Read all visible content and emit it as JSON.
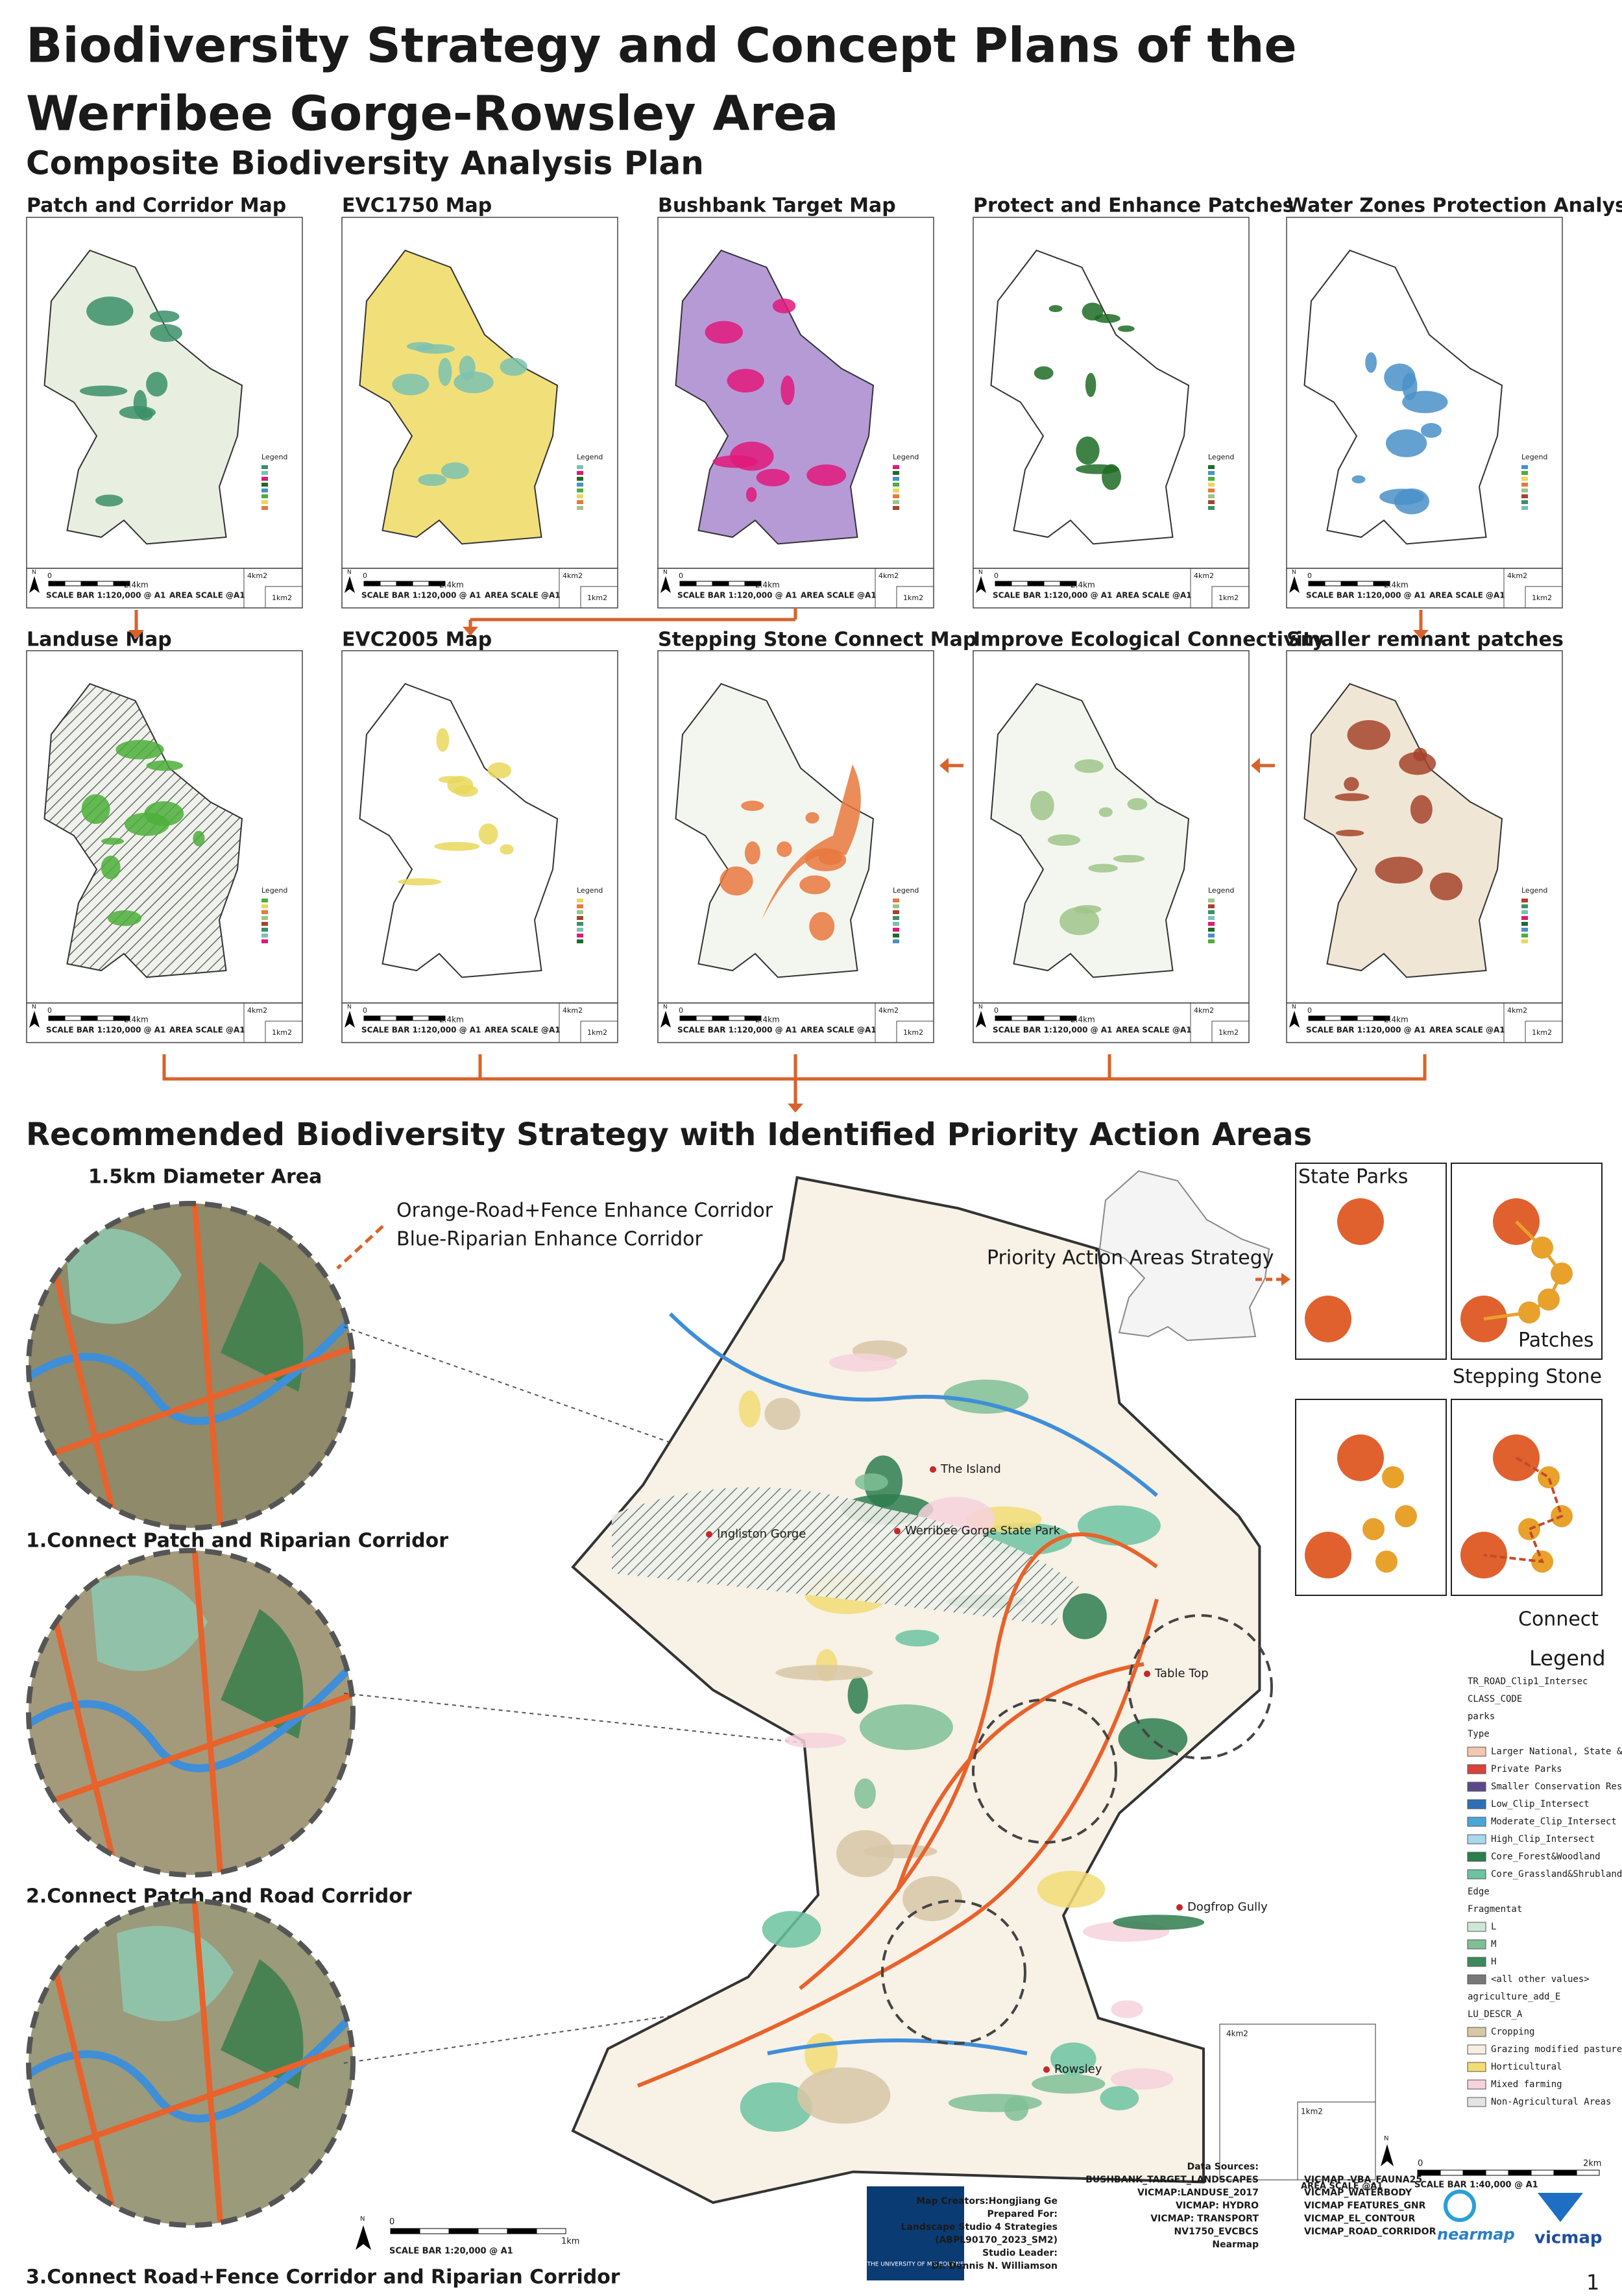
{
  "header": {
    "title_line1": "Biodiversity Strategy and Concept Plans of the",
    "title_line2": "Werribee Gorge-Rowsley Area",
    "subtitle": "Composite Biodiversity Analysis Plan"
  },
  "panels": [
    {
      "title": "Patch and Corridor Map"
    },
    {
      "title": "EVC1750 Map"
    },
    {
      "title": "Bushbank Target Map"
    },
    {
      "title": "Protect  and Enhance Patches"
    },
    {
      "title": "Water Zones Protection Analysis"
    },
    {
      "title": "Landuse Map"
    },
    {
      "title": "EVC2005 Map"
    },
    {
      "title": "Stepping Stone Connect Map"
    },
    {
      "title": "Improve Ecological Connectivity"
    },
    {
      "title": "Smaller remnant patches"
    }
  ],
  "panel_legend": "Legend",
  "panel_scale": {
    "north": "N",
    "zero": "0",
    "distance": "2.4km",
    "scale_bar": "SCALE BAR 1:120,000 @ A1",
    "area_scale": "AREA SCALE @A1",
    "large_area": "4km2",
    "small_area": "1km2"
  },
  "strategy": {
    "title": "Recommended Biodiversity Strategy with Identified Priority Action Areas",
    "diameter_label": "1.5km Diameter Area",
    "corridor_labels": [
      "Orange-Road+Fence Enhance Corridor",
      "Blue-Riparian Enhance Corridor"
    ],
    "circle_captions": [
      "1.Connect Patch and Riparian Corridor",
      "2.Connect Patch and Road Corridor",
      "3.Connect Road+Fence Corridor and Riparian Corridor"
    ],
    "strategy_label": "Priority Action Areas Strategy",
    "box_labels": {
      "state_parks": "State Parks",
      "patches": "Patches",
      "stepping_stone": "Stepping Stone",
      "connect": "Connect"
    },
    "places": [
      "The Island",
      "Werribee Gorge State Park",
      "Ingliston Gorge",
      "Table Top",
      "Dogfrop Gully",
      "Rowsley"
    ],
    "main_scale": {
      "north": "N",
      "zero": "0",
      "distance": "2km",
      "scale_bar": "SCALE BAR 1:40,000 @ A1",
      "area_scale": "AREA SCALE @A1",
      "large_area": "4km2",
      "small_area": "1km2"
    },
    "inset_scale": {
      "north": "N",
      "zero": "0",
      "distance": "1km",
      "scale_bar": "SCALE BAR 1:20,000 @ A1"
    }
  },
  "legend": {
    "title": "Legend",
    "items": [
      {
        "text": "TR_ROAD_Clip1_Intersec"
      },
      {
        "text": "CLASS_CODE"
      },
      {
        "text": "parks"
      },
      {
        "text": "Type"
      },
      {
        "text": "Larger National, State & Regi",
        "color": "#f2c9b0"
      },
      {
        "text": "Private Parks",
        "color": "#d9423a"
      },
      {
        "text": "Smaller Conservation Reserves",
        "color": "#5a4a8a"
      },
      {
        "text": "Low_Clip_Intersect",
        "color": "#2d6fb5"
      },
      {
        "text": "Moderate_Clip_Intersect",
        "color": "#4aa6d8"
      },
      {
        "text": "High_Clip_Intersect",
        "color": "#a9d8ec"
      },
      {
        "text": "Core_Forest&Woodland",
        "color": "#2e7d4f"
      },
      {
        "text": "Core_Grassland&Shrubland&Wetl",
        "color": "#6cc3a0"
      },
      {
        "text": "Edge"
      },
      {
        "text": "Fragmentat"
      },
      {
        "text": "L",
        "color": "#cfe8d6"
      },
      {
        "text": "M",
        "color": "#7fbf95"
      },
      {
        "text": "H",
        "color": "#3c8a5b"
      },
      {
        "text": "<all other values>",
        "color": "#777777"
      },
      {
        "text": "agriculture_add_E"
      },
      {
        "text": "LU_DESCR_A"
      },
      {
        "text": "Cropping",
        "color": "#d8c7a6"
      },
      {
        "text": "Grazing modified pastures",
        "color": "#f4efe2"
      },
      {
        "text": "Horticultural",
        "color": "#f2dc74"
      },
      {
        "text": "Mixed farming",
        "color": "#f6d2dc"
      },
      {
        "text": "Non-Agricultural Areas",
        "color": "#e4e4e4"
      }
    ]
  },
  "credits": {
    "creators": [
      "Map Creators:Hongjiang Ge",
      "Prepared For:",
      "Landscape Studio 4 Strategies",
      "(ABPL90170_2023_SM2)",
      "Studio Leader:",
      "Dr. Dennis N. Williamson"
    ],
    "data_sources_title": "Data Sources:",
    "data_sources_1": [
      "BUSHBANK_TARGET_LANDSCAPES",
      "VICMAP:LANDUSE_2017",
      "VICMAP: HYDRO",
      "VICMAP: TRANSPORT",
      "NV1750_EVCBCS",
      "Nearmap"
    ],
    "data_sources_2": [
      "VICMAP -VBA_FAUNA25",
      "VICMAP_WATERBODY",
      "VICMAP FEATURES_GNR",
      "VICMAP_EL_CONTOUR",
      "VICMAP_ROAD_CORRIDOR"
    ],
    "university": "THE UNIVERSITY OF MELBOURNE",
    "logo_1": "nearmap",
    "logo_2": "vicmap",
    "page_number": "1"
  }
}
